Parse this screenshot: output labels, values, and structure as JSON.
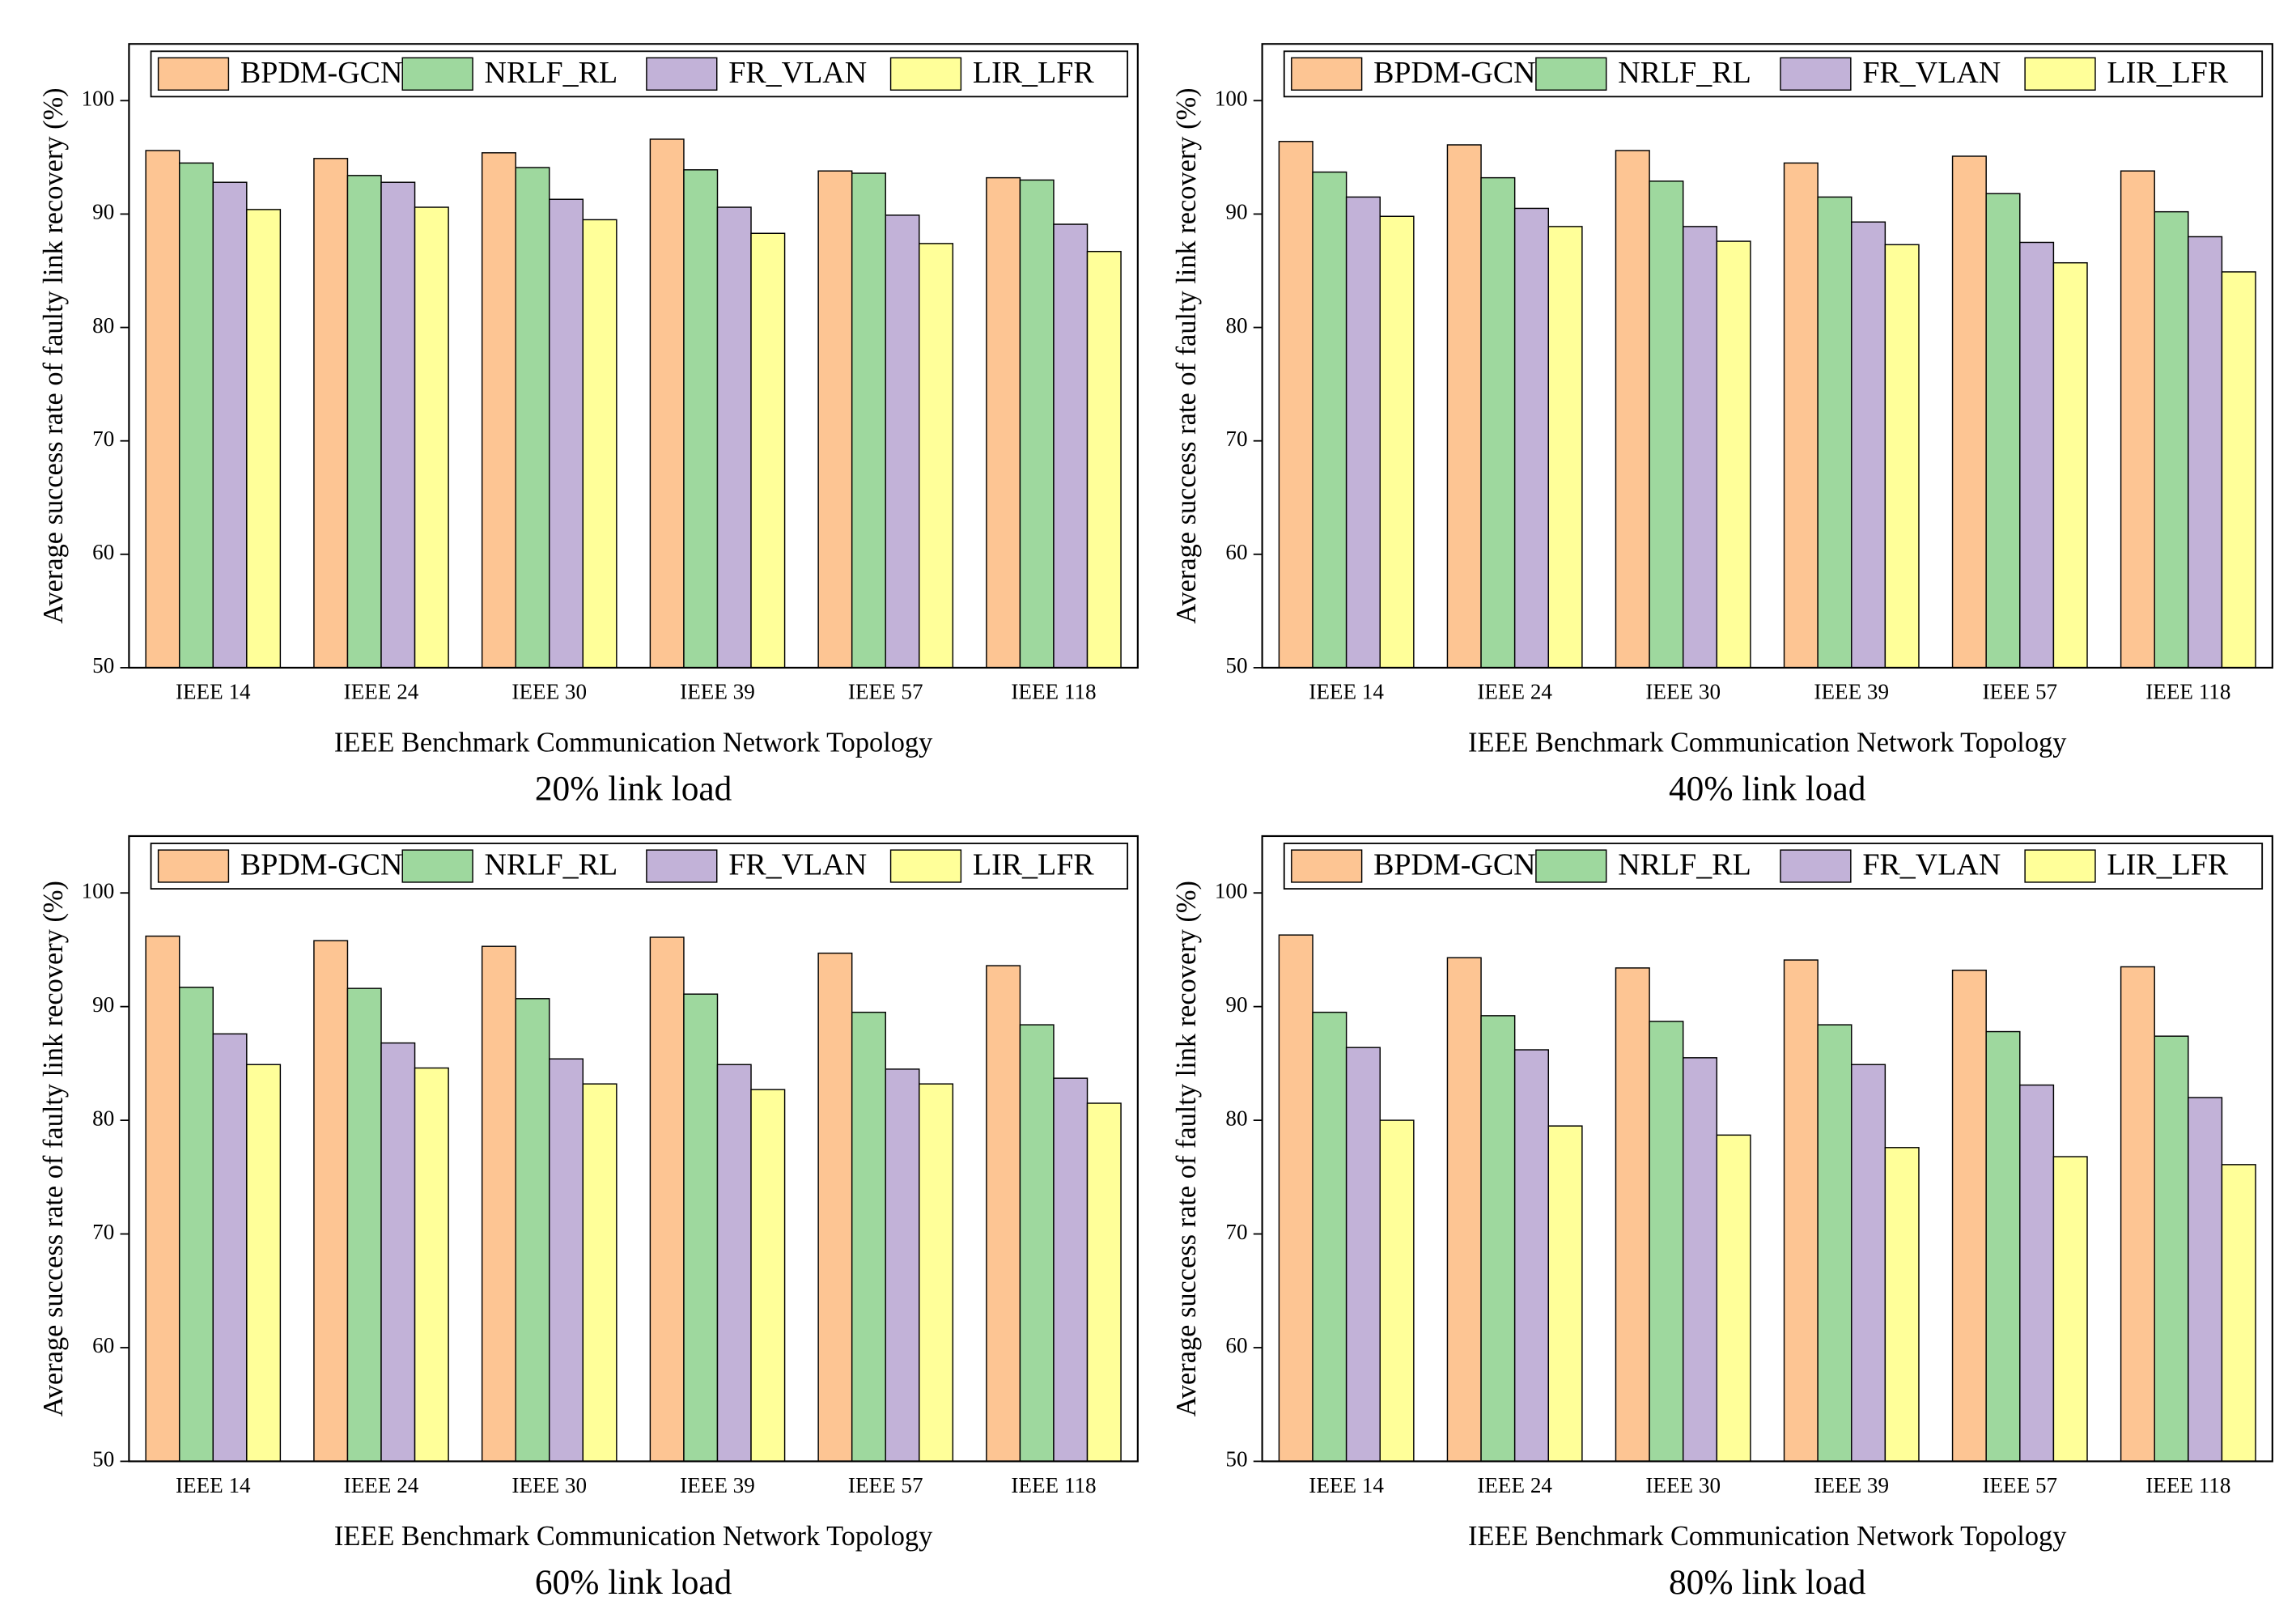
{
  "chart_data": [
    {
      "type": "bar",
      "title": "20% link load",
      "xlabel": "IEEE Benchmark Communication Network Topology",
      "ylabel": "Average success rate of faulty link recovery (%)",
      "categories": [
        "IEEE 14",
        "IEEE 24",
        "IEEE 30",
        "IEEE 39",
        "IEEE 57",
        "IEEE 118"
      ],
      "series": [
        {
          "name": "BPDM-GCN",
          "color": "#fdc593",
          "values": [
            95.6,
            94.9,
            95.4,
            96.6,
            93.8,
            93.2
          ]
        },
        {
          "name": "NRLF_RL",
          "color": "#9ed89e",
          "values": [
            94.5,
            93.4,
            94.1,
            93.9,
            93.6,
            93.0
          ]
        },
        {
          "name": "FR_VLAN",
          "color": "#c2b2d8",
          "values": [
            92.8,
            92.8,
            91.3,
            90.6,
            89.9,
            89.1
          ]
        },
        {
          "name": "LIR_LFR",
          "color": "#ffff99",
          "values": [
            90.4,
            90.6,
            89.5,
            88.3,
            87.4,
            86.7
          ]
        }
      ],
      "ylim": [
        50,
        105
      ],
      "yticks": [
        50,
        60,
        70,
        80,
        90,
        100
      ],
      "legend": "top"
    },
    {
      "type": "bar",
      "title": "40% link load",
      "xlabel": "IEEE Benchmark Communication Network Topology",
      "ylabel": "Average success rate of faulty link recovery (%)",
      "categories": [
        "IEEE 14",
        "IEEE 24",
        "IEEE 30",
        "IEEE 39",
        "IEEE 57",
        "IEEE 118"
      ],
      "series": [
        {
          "name": "BPDM-GCN",
          "color": "#fdc593",
          "values": [
            96.4,
            96.1,
            95.6,
            94.5,
            95.1,
            93.8
          ]
        },
        {
          "name": "NRLF_RL",
          "color": "#9ed89e",
          "values": [
            93.7,
            93.2,
            92.9,
            91.5,
            91.8,
            90.2
          ]
        },
        {
          "name": "FR_VLAN",
          "color": "#c2b2d8",
          "values": [
            91.5,
            90.5,
            88.9,
            89.3,
            87.5,
            88.0
          ]
        },
        {
          "name": "LIR_LFR",
          "color": "#ffff99",
          "values": [
            89.8,
            88.9,
            87.6,
            87.3,
            85.7,
            84.9
          ]
        }
      ],
      "ylim": [
        50,
        105
      ],
      "yticks": [
        50,
        60,
        70,
        80,
        90,
        100
      ],
      "legend": "top"
    },
    {
      "type": "bar",
      "title": "60% link load",
      "xlabel": "IEEE Benchmark Communication Network Topology",
      "ylabel": "Average success rate of faulty link recovery (%)",
      "categories": [
        "IEEE 14",
        "IEEE 24",
        "IEEE 30",
        "IEEE 39",
        "IEEE 57",
        "IEEE 118"
      ],
      "series": [
        {
          "name": "BPDM-GCN",
          "color": "#fdc593",
          "values": [
            96.2,
            95.8,
            95.3,
            96.1,
            94.7,
            93.6
          ]
        },
        {
          "name": "NRLF_RL",
          "color": "#9ed89e",
          "values": [
            91.7,
            91.6,
            90.7,
            91.1,
            89.5,
            88.4
          ]
        },
        {
          "name": "FR_VLAN",
          "color": "#c2b2d8",
          "values": [
            87.6,
            86.8,
            85.4,
            84.9,
            84.5,
            83.7
          ]
        },
        {
          "name": "LIR_LFR",
          "color": "#ffff99",
          "values": [
            84.9,
            84.6,
            83.2,
            82.7,
            83.2,
            81.5
          ]
        }
      ],
      "ylim": [
        50,
        105
      ],
      "yticks": [
        50,
        60,
        70,
        80,
        90,
        100
      ],
      "legend": "top"
    },
    {
      "type": "bar",
      "title": "80% link load",
      "xlabel": "IEEE Benchmark Communication Network Topology",
      "ylabel": "Average success rate of faulty link recovery (%)",
      "categories": [
        "IEEE 14",
        "IEEE 24",
        "IEEE 30",
        "IEEE 39",
        "IEEE 57",
        "IEEE 118"
      ],
      "series": [
        {
          "name": "BPDM-GCN",
          "color": "#fdc593",
          "values": [
            96.3,
            94.3,
            93.4,
            94.1,
            93.2,
            93.5
          ]
        },
        {
          "name": "NRLF_RL",
          "color": "#9ed89e",
          "values": [
            89.5,
            89.2,
            88.7,
            88.4,
            87.8,
            87.4
          ]
        },
        {
          "name": "FR_VLAN",
          "color": "#c2b2d8",
          "values": [
            86.4,
            86.2,
            85.5,
            84.9,
            83.1,
            82.0
          ]
        },
        {
          "name": "LIR_LFR",
          "color": "#ffff99",
          "values": [
            80.0,
            79.5,
            78.7,
            77.6,
            76.8,
            76.1
          ]
        }
      ],
      "ylim": [
        50,
        105
      ],
      "yticks": [
        50,
        60,
        70,
        80,
        90,
        100
      ],
      "legend": "top"
    }
  ]
}
